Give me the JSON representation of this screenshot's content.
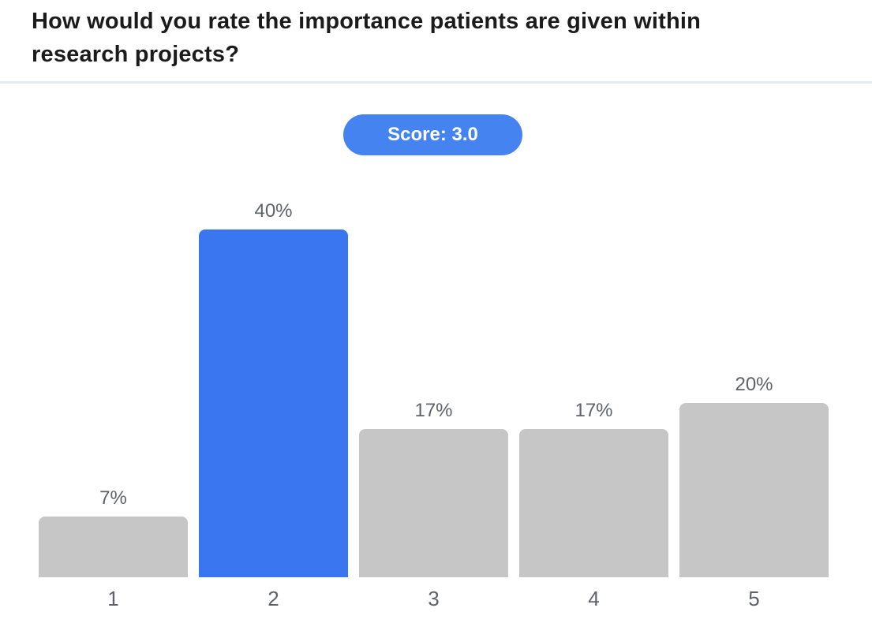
{
  "header": {
    "title": "How would you rate the importance patients are given within research projects?"
  },
  "score_badge": {
    "label": "Score: 3.0"
  },
  "colors": {
    "highlight_blue": "#3a76ef",
    "badge_blue": "#4584f0",
    "bar_gray": "#c6c6c6",
    "label_gray": "#5f6368",
    "title_dark": "#1b1b1b",
    "divider": "#e7ecf4"
  },
  "chart_data": {
    "type": "bar",
    "title": "How would you rate the importance patients are given within research projects?",
    "score": "3.0",
    "categories": [
      "1",
      "2",
      "3",
      "4",
      "5"
    ],
    "values": [
      7,
      40,
      17,
      17,
      20
    ],
    "value_labels": [
      "7%",
      "40%",
      "17%",
      "17%",
      "20%"
    ],
    "highlighted_category": "2",
    "highlighted_index": 1,
    "xlabel": "",
    "ylabel": "",
    "ylim": [
      0,
      45
    ],
    "grid": false,
    "legend": false,
    "value_label_position": "above-bar"
  }
}
